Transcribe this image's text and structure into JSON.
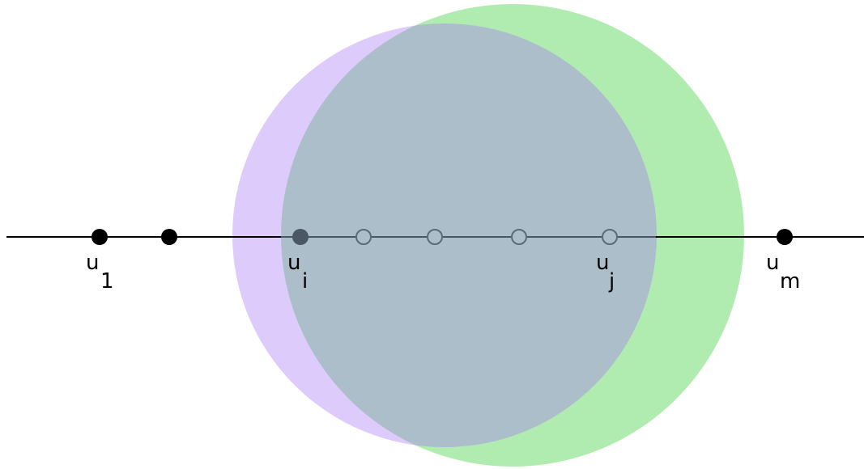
{
  "colors": {
    "background": "#ffffff",
    "line": "#000000",
    "purple_disk": "#dccbfb",
    "green_disk": "#b0ebb0",
    "overlap": "#adbecb",
    "filled_node": "#000000",
    "highlight_node": "#4a5866",
    "hollow_node_stroke": "#5a6a78",
    "hollow_node_fill": "#adbecb"
  },
  "labels": {
    "u1": {
      "base": "u",
      "sub": "1"
    },
    "ui": {
      "base": "u",
      "sub": "i"
    },
    "uj": {
      "base": "u",
      "sub": "j"
    },
    "um": {
      "base": "u",
      "sub": "m"
    }
  }
}
